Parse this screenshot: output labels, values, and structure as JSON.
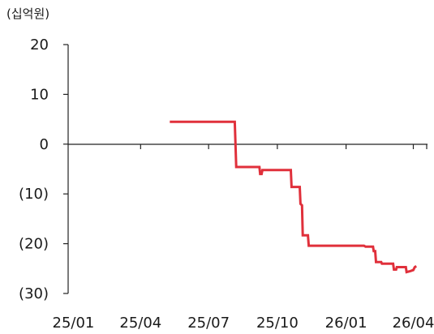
{
  "chart_data": {
    "type": "line",
    "unit_label": "(십억원)",
    "y_ticks": [
      {
        "value": 20,
        "label": "20"
      },
      {
        "value": 10,
        "label": "10"
      },
      {
        "value": 0,
        "label": "0"
      },
      {
        "value": -10,
        "label": "(10)"
      },
      {
        "value": -20,
        "label": "(20)"
      },
      {
        "value": -30,
        "label": "(30)"
      }
    ],
    "x_ticks": [
      {
        "date": "2025-01-01",
        "label": "25/01"
      },
      {
        "date": "2025-04-01",
        "label": "25/04"
      },
      {
        "date": "2025-07-01",
        "label": "25/07"
      },
      {
        "date": "2025-10-01",
        "label": "25/10"
      },
      {
        "date": "2026-01-01",
        "label": "26/01"
      },
      {
        "date": "2026-04-01",
        "label": "26/04"
      }
    ],
    "xlim": [
      "2024-12-25",
      "2026-04-20"
    ],
    "ylim": [
      -30,
      20
    ],
    "grid": false,
    "series": [
      {
        "color": "#e0303b",
        "points": [
          [
            "2025-05-10",
            4.5
          ],
          [
            "2025-08-05",
            4.5
          ],
          [
            "2025-08-07",
            -4.6
          ],
          [
            "2025-09-07",
            -4.6
          ],
          [
            "2025-09-08",
            -6.0
          ],
          [
            "2025-09-10",
            -6.0
          ],
          [
            "2025-09-11",
            -5.2
          ],
          [
            "2025-10-19",
            -5.2
          ],
          [
            "2025-10-20",
            -8.6
          ],
          [
            "2025-10-31",
            -8.6
          ],
          [
            "2025-11-01",
            -12.0
          ],
          [
            "2025-11-03",
            -12.3
          ],
          [
            "2025-11-04",
            -18.3
          ],
          [
            "2025-11-11",
            -18.3
          ],
          [
            "2025-11-12",
            -20.4
          ],
          [
            "2026-01-25",
            -20.4
          ],
          [
            "2026-01-27",
            -20.6
          ],
          [
            "2026-02-06",
            -20.6
          ],
          [
            "2026-02-07",
            -21.5
          ],
          [
            "2026-02-09",
            -21.5
          ],
          [
            "2026-02-10",
            -23.7
          ],
          [
            "2026-02-17",
            -23.7
          ],
          [
            "2026-02-18",
            -24.0
          ],
          [
            "2026-03-05",
            -24.0
          ],
          [
            "2026-03-06",
            -25.2
          ],
          [
            "2026-03-09",
            -25.2
          ],
          [
            "2026-03-10",
            -24.7
          ],
          [
            "2026-03-22",
            -24.7
          ],
          [
            "2026-03-23",
            -25.7
          ],
          [
            "2026-03-28",
            -25.5
          ],
          [
            "2026-04-01",
            -25.3
          ],
          [
            "2026-04-03",
            -24.7
          ],
          [
            "2026-04-05",
            -24.5
          ]
        ]
      }
    ]
  }
}
